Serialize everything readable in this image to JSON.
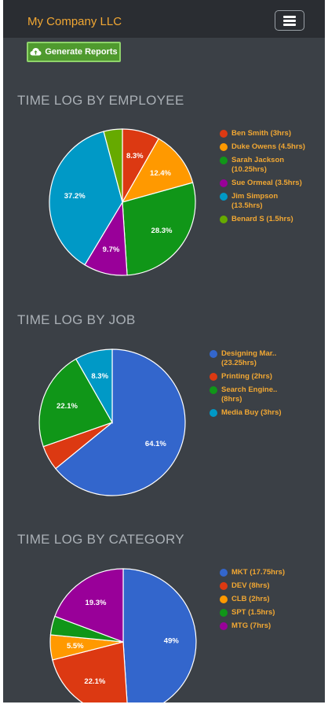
{
  "navbar": {
    "brand": "My Company LLC"
  },
  "toolbar": {
    "generate_label": "Generate Reports"
  },
  "icons": {
    "menu": "hamburger-menu-icon",
    "generate": "cloud-upload-icon"
  },
  "charts": [
    {
      "title": "TIME LOG BY EMPLOYEE",
      "chart_data": {
        "type": "pie",
        "categories": [
          "Ben Smith",
          "Duke Owens",
          "Sarah Jackson",
          "Sue Ormeal",
          "Jim Simpson",
          "Benard S"
        ],
        "values": [
          3,
          4.5,
          10.25,
          3.5,
          13.5,
          1.5
        ],
        "slice_labels": [
          "8.3%",
          "12.4%",
          "28.3%",
          "9.7%",
          "37.2%",
          ""
        ],
        "colors": [
          "#dc3912",
          "#ff9900",
          "#109618",
          "#990099",
          "#0099c6",
          "#66aa00"
        ]
      },
      "legend": [
        "Ben Smith (3hrs)",
        "Duke Owens (4.5hrs)",
        "Sarah Jackson (10.25hrs)",
        "Sue Ormeal (3.5hrs)",
        "Jim Simpson (13.5hrs)",
        "Benard S (1.5hrs)"
      ]
    },
    {
      "title": "TIME LOG BY JOB",
      "chart_data": {
        "type": "pie",
        "categories": [
          "Designing Mar..",
          "Printing",
          "Search Engine..",
          "Media Buy"
        ],
        "values": [
          23.25,
          2,
          8,
          3
        ],
        "slice_labels": [
          "64.1%",
          "",
          "22.1%",
          "8.3%"
        ],
        "colors": [
          "#3366cc",
          "#dc3912",
          "#109618",
          "#0099c6"
        ]
      },
      "legend": [
        "Designing Mar.. (23.25hrs)",
        "Printing (2hrs)",
        "Search Engine.. (8hrs)",
        "Media Buy (3hrs)"
      ]
    },
    {
      "title": "TIME LOG BY CATEGORY",
      "chart_data": {
        "type": "pie",
        "categories": [
          "MKT",
          "DEV",
          "CLB",
          "SPT",
          "MTG"
        ],
        "values": [
          17.75,
          8,
          2,
          1.5,
          7
        ],
        "slice_labels": [
          "49%",
          "22.1%",
          "5.5%",
          "",
          "19.3%"
        ],
        "colors": [
          "#3366cc",
          "#dc3912",
          "#ff9900",
          "#109618",
          "#990099"
        ]
      },
      "legend": [
        "MKT (17.75hrs)",
        "DEV (8hrs)",
        "CLB (2hrs)",
        "SPT (1.5hrs)",
        "MTG (7hrs)"
      ]
    }
  ]
}
